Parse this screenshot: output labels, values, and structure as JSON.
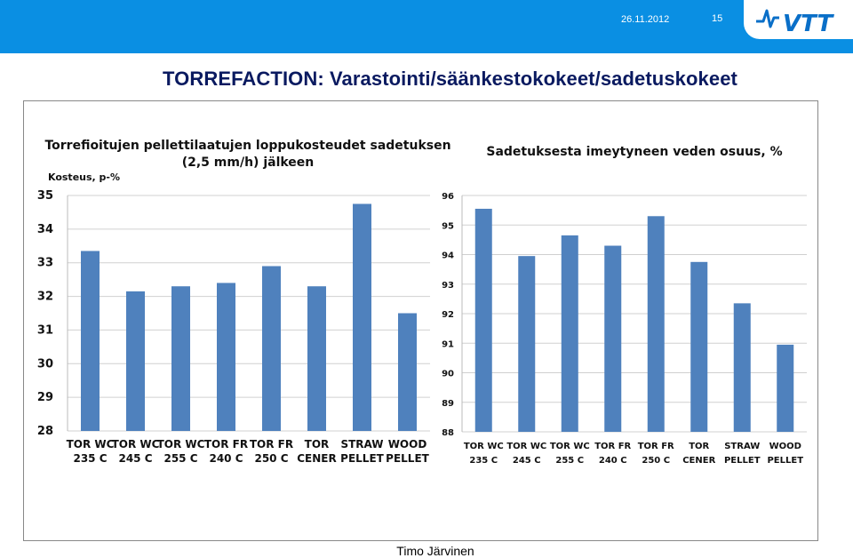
{
  "header": {
    "date": "26.11.2012",
    "slide_number": "15",
    "logo_text": "VTT",
    "bar_color": "#0a8fe3",
    "logo_color": "#0a6fc8"
  },
  "title": "TORREFACTION: Varastointi/säänkestokokeet/sadetuskokeet",
  "footer": {
    "author": "Timo Järvinen"
  },
  "chart_data": [
    {
      "type": "bar",
      "title_lines": [
        "Torrefioitujen pellettilaatujen loppukosteudet sadetuksen",
        "(2,5 mm/h)  jälkeen"
      ],
      "ylabel": "Kosteus, p-%",
      "xlabel": "",
      "ylim": [
        28,
        35
      ],
      "yticks": [
        28,
        29,
        30,
        31,
        32,
        33,
        34,
        35
      ],
      "grid": true,
      "bar_color": "#4f81bd",
      "categories": [
        [
          "TOR WC",
          "235 C"
        ],
        [
          "TOR WC",
          "245 C"
        ],
        [
          "TOR WC",
          "255 C"
        ],
        [
          "TOR FR",
          "240 C"
        ],
        [
          "TOR FR",
          "250 C"
        ],
        [
          "TOR",
          "CENER"
        ],
        [
          "STRAW",
          "PELLET"
        ],
        [
          "WOOD",
          "PELLET"
        ]
      ],
      "values": [
        33.35,
        32.15,
        32.3,
        32.4,
        32.9,
        32.3,
        34.75,
        31.5
      ]
    },
    {
      "type": "bar",
      "title_lines": [
        "Sadetuksesta imeytyneen veden osuus, %"
      ],
      "ylabel": "",
      "xlabel": "",
      "ylim": [
        88,
        96
      ],
      "yticks": [
        88,
        89,
        90,
        91,
        92,
        93,
        94,
        95,
        96
      ],
      "grid": true,
      "bar_color": "#4f81bd",
      "categories": [
        [
          "TOR WC",
          "235 C"
        ],
        [
          "TOR WC",
          "245 C"
        ],
        [
          "TOR WC",
          "255 C"
        ],
        [
          "TOR FR",
          "240 C"
        ],
        [
          "TOR FR",
          "250 C"
        ],
        [
          "TOR",
          "CENER"
        ],
        [
          "STRAW",
          "PELLET"
        ],
        [
          "WOOD",
          "PELLET"
        ]
      ],
      "values": [
        95.55,
        93.95,
        94.65,
        94.3,
        95.3,
        93.75,
        92.35,
        90.95
      ]
    }
  ]
}
